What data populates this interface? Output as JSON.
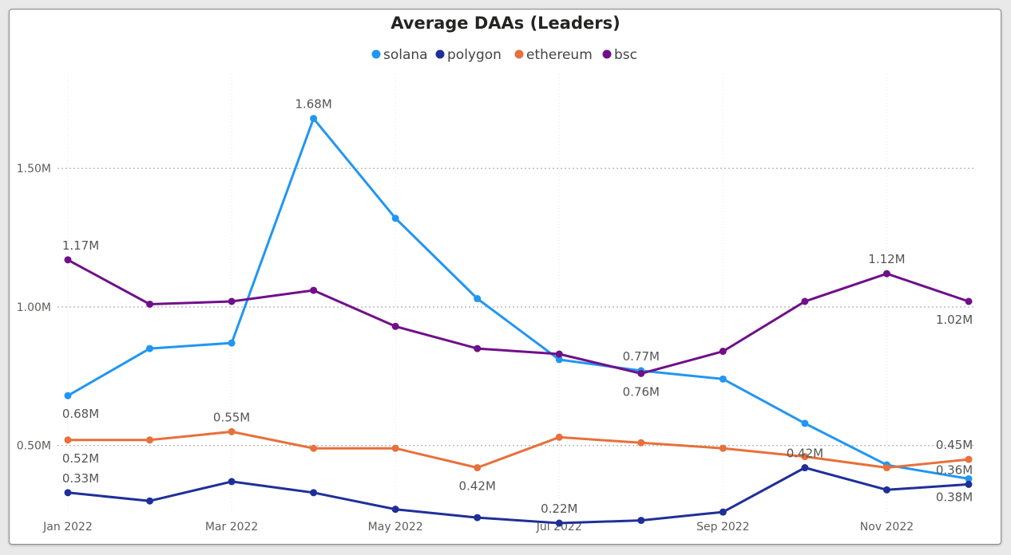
{
  "chart_data": {
    "type": "line",
    "title": "Average DAAs (Leaders)",
    "xlabel": "",
    "ylabel": "",
    "ylim": [
      0.2,
      1.84
    ],
    "grid": true,
    "legend_position": "top-center",
    "x": [
      "Jan 2022",
      "Feb 2022",
      "Mar 2022",
      "Apr 2022",
      "May 2022",
      "Jun 2022",
      "Jul 2022",
      "Aug 2022",
      "Sep 2022",
      "Oct 2022",
      "Nov 2022",
      "Dec 2022"
    ],
    "x_tick_labels": [
      "Jan 2022",
      "Mar 2022",
      "May 2022",
      "Jul 2022",
      "Sep 2022",
      "Nov 2022"
    ],
    "x_tick_indices": [
      0,
      2,
      4,
      6,
      8,
      10
    ],
    "y_ticks": [
      0.5,
      1.0,
      1.5
    ],
    "y_tick_labels": [
      "0.50M",
      "1.00M",
      "1.50M"
    ],
    "series": [
      {
        "name": "solana",
        "color": "#2196f3",
        "values": [
          0.68,
          0.85,
          0.87,
          1.68,
          1.32,
          1.03,
          0.81,
          0.77,
          0.74,
          0.58,
          0.43,
          0.38
        ]
      },
      {
        "name": "polygon",
        "color": "#1f2f99",
        "values": [
          0.33,
          0.3,
          0.37,
          0.33,
          0.27,
          0.24,
          0.22,
          0.23,
          0.26,
          0.42,
          0.34,
          0.36
        ]
      },
      {
        "name": "ethereum",
        "color": "#e8703a",
        "values": [
          0.52,
          0.52,
          0.55,
          0.49,
          0.49,
          0.42,
          0.53,
          0.51,
          0.49,
          0.46,
          0.42,
          0.45
        ]
      },
      {
        "name": "bsc",
        "color": "#700f8a",
        "values": [
          1.17,
          1.01,
          1.02,
          1.06,
          0.93,
          0.85,
          0.83,
          0.76,
          0.84,
          1.02,
          1.12,
          1.02
        ]
      }
    ],
    "data_labels": [
      {
        "series": "solana",
        "index": 0,
        "text": "0.68M",
        "pos": "below"
      },
      {
        "series": "solana",
        "index": 3,
        "text": "1.68M",
        "pos": "above"
      },
      {
        "series": "solana",
        "index": 7,
        "text": "0.77M",
        "pos": "above"
      },
      {
        "series": "solana",
        "index": 11,
        "text": "0.38M",
        "pos": "below"
      },
      {
        "series": "polygon",
        "index": 0,
        "text": "0.33M",
        "pos": "above"
      },
      {
        "series": "polygon",
        "index": 6,
        "text": "0.22M",
        "pos": "above"
      },
      {
        "series": "polygon",
        "index": 9,
        "text": "0.42M",
        "pos": "above"
      },
      {
        "series": "polygon",
        "index": 11,
        "text": "0.36M",
        "pos": "above"
      },
      {
        "series": "ethereum",
        "index": 0,
        "text": "0.52M",
        "pos": "below"
      },
      {
        "series": "ethereum",
        "index": 2,
        "text": "0.55M",
        "pos": "above"
      },
      {
        "series": "ethereum",
        "index": 5,
        "text": "0.42M",
        "pos": "below"
      },
      {
        "series": "ethereum",
        "index": 11,
        "text": "0.45M",
        "pos": "above"
      },
      {
        "series": "bsc",
        "index": 0,
        "text": "1.17M",
        "pos": "above"
      },
      {
        "series": "bsc",
        "index": 7,
        "text": "0.76M",
        "pos": "below"
      },
      {
        "series": "bsc",
        "index": 10,
        "text": "1.12M",
        "pos": "above"
      },
      {
        "series": "bsc",
        "index": 11,
        "text": "1.02M",
        "pos": "below"
      }
    ]
  }
}
